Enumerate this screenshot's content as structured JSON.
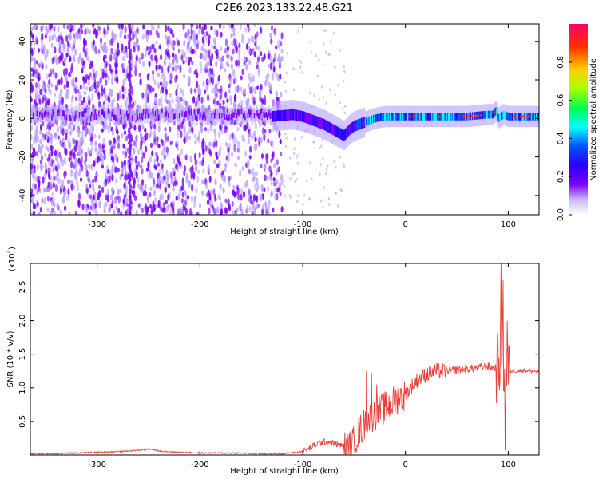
{
  "title": "C2E6.2023.133.22.48.G21",
  "chart_data": [
    {
      "type": "heatmap",
      "xlabel": "Height of straight line (km)",
      "ylabel": "Frequency (Hz)",
      "xlim": [
        -365,
        130
      ],
      "ylim": [
        -50,
        49
      ],
      "xticks": [
        -300,
        -200,
        -100,
        0,
        100
      ],
      "yticks": [
        -40,
        -20,
        0,
        20,
        40
      ],
      "colorbar": {
        "label": "Normalized spectral amplitude",
        "range": [
          0,
          1
        ],
        "ticks": [
          0.0,
          0.2,
          0.4,
          0.6,
          0.8
        ],
        "colors": [
          "#ffffff",
          "#b9a3ff",
          "#7b00ff",
          "#2a00ff",
          "#0055ff",
          "#00ffff",
          "#00ff50",
          "#a8ff00",
          "#ffd000",
          "#ff3000",
          "#ff0066"
        ]
      },
      "signal_track": {
        "x": [
          -130,
          -110,
          -100,
          -90,
          -80,
          -70,
          -60,
          -55,
          -50,
          -45,
          -40,
          -30,
          -20,
          -10,
          0,
          20,
          40,
          60,
          80,
          85,
          88,
          90,
          95,
          100,
          110,
          130
        ],
        "frequency": [
          1,
          2,
          1,
          -1,
          -3,
          -6,
          -9,
          -6,
          -4,
          -3,
          -2,
          0,
          1,
          1,
          1,
          1,
          1,
          1,
          2,
          2,
          4,
          0,
          2,
          1,
          1,
          1
        ]
      },
      "noise_band": {
        "x_range": [
          -365,
          -120
        ],
        "frequency_range": [
          -50,
          49
        ]
      },
      "grid": false
    },
    {
      "type": "line",
      "xlabel": "Height of straight line (km)",
      "ylabel": "SNR (10 * v/v)",
      "y_multiplier": "(x10⁴)",
      "y_multiplier_base": "(x10",
      "y_multiplier_exp": "4",
      "xlim": [
        -365,
        130
      ],
      "ylim": [
        0,
        2.85
      ],
      "xticks": [
        -300,
        -200,
        -100,
        0,
        100
      ],
      "yticks": [
        0.5,
        1.0,
        1.5,
        2.0,
        2.5
      ],
      "ytick_labels": [
        "0.5",
        "1.0",
        "1.5",
        "2.0",
        "2.5"
      ],
      "color": "#e8403c",
      "grid": false,
      "series": [
        {
          "x": [
            -365,
            -340,
            -320,
            -300,
            -280,
            -260,
            -250,
            -240,
            -220,
            -200,
            -180,
            -160,
            -140,
            -120,
            -105,
            -95,
            -85,
            -75,
            -65,
            -55,
            -50,
            -45,
            -40,
            -35,
            -30,
            -25,
            -20,
            -15,
            -10,
            -5,
            0,
            5,
            10,
            20,
            30,
            40,
            50,
            60,
            70,
            80,
            85,
            90,
            93,
            95,
            97,
            100,
            105,
            110,
            115,
            120,
            130
          ],
          "y": [
            0.02,
            0.02,
            0.03,
            0.04,
            0.05,
            0.07,
            0.09,
            0.06,
            0.04,
            0.03,
            0.03,
            0.03,
            0.02,
            0.02,
            0.04,
            0.08,
            0.18,
            0.2,
            0.15,
            0.1,
            0.2,
            0.35,
            0.45,
            0.55,
            0.6,
            0.65,
            0.7,
            0.75,
            0.8,
            0.85,
            0.9,
            1.0,
            1.1,
            1.2,
            1.25,
            1.25,
            1.27,
            1.28,
            1.3,
            1.32,
            1.3,
            1.3,
            1.6,
            1.4,
            1.2,
            1.25,
            1.25,
            1.25,
            1.26,
            1.25,
            1.24
          ]
        }
      ],
      "spikes": [
        {
          "x": -38,
          "y": 1.25
        },
        {
          "x": -33,
          "y": 1.22
        },
        {
          "x": -28,
          "y": 1.05
        },
        {
          "x": 93,
          "y": 2.85
        },
        {
          "x": 95,
          "y": 2.6
        },
        {
          "x": 97,
          "y": 0.07
        },
        {
          "x": 99,
          "y": 2.0
        }
      ]
    }
  ]
}
